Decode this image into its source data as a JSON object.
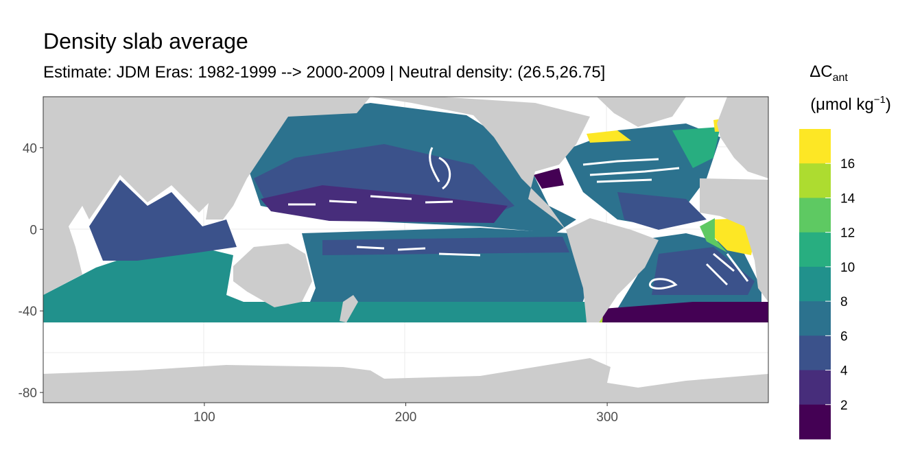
{
  "title": "Density slab average",
  "subtitle": "Estimate: JDM Eras: 1982-1999 --> 2000-2009 | Neutral density: (26.5,26.75]",
  "map": {
    "x_ticks": [
      100,
      200,
      300
    ],
    "y_ticks": [
      40,
      0,
      -40,
      -80
    ],
    "x_range": [
      20,
      380
    ],
    "y_range": [
      -85,
      65
    ],
    "land_color": "#cccccc",
    "no_data_color": "#ffffff",
    "panel_border_color": "#333333",
    "gridline_color": "#ebebeb"
  },
  "legend": {
    "title_main": "ΔC",
    "title_sub": "ant",
    "unit_prefix": "(μmol kg",
    "unit_sup": "−1",
    "unit_suffix": ")",
    "bin_colors": [
      "#440154",
      "#472d7b",
      "#3b528b",
      "#2c728e",
      "#21918c",
      "#28ae80",
      "#5ec962",
      "#addc30",
      "#fde725"
    ],
    "labels": [
      "2",
      "4",
      "6",
      "8",
      "10",
      "12",
      "14",
      "16"
    ]
  }
}
